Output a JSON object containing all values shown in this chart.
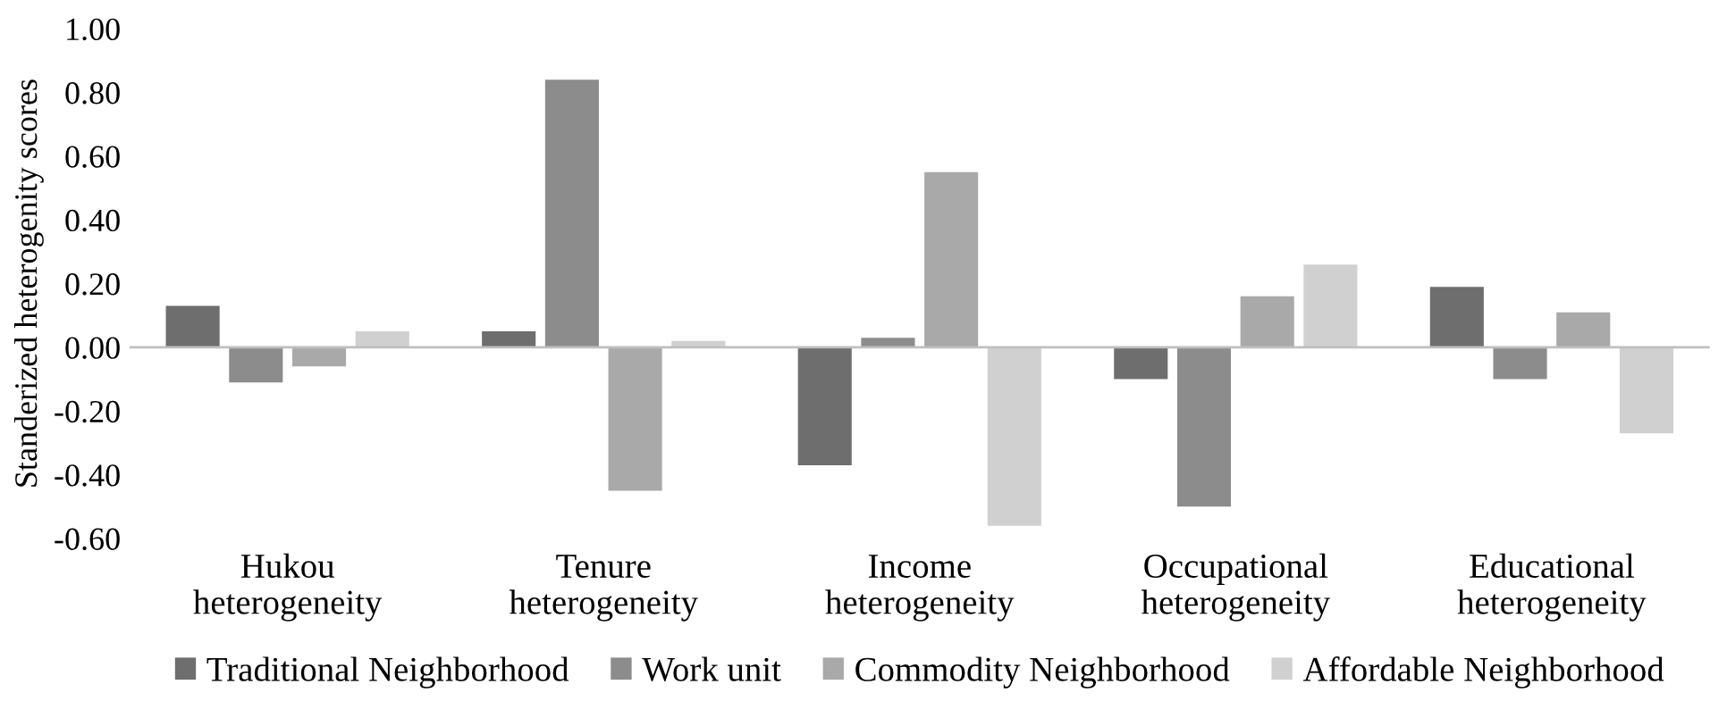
{
  "chart_data": {
    "type": "bar",
    "ylabel": "Standerized heterogenity scores",
    "categories": [
      "Hukou\nheterogeneity",
      "Tenure\nheterogeneity",
      "Income\nheterogeneity",
      "Occupational\nheterogeneity",
      "Educational\nheterogeneity"
    ],
    "series": [
      {
        "name": "Traditional Neighborhood",
        "color": "#6e6e6e",
        "values": [
          0.13,
          0.05,
          -0.37,
          -0.1,
          0.19
        ]
      },
      {
        "name": "Work unit",
        "color": "#8c8c8c",
        "values": [
          -0.11,
          0.84,
          0.03,
          -0.5,
          -0.1
        ]
      },
      {
        "name": "Commodity Neighborhood",
        "color": "#a9a9a9",
        "values": [
          -0.06,
          -0.45,
          0.55,
          0.16,
          0.11
        ]
      },
      {
        "name": "Affordable Neighborhood",
        "color": "#d0d0d0",
        "values": [
          0.05,
          0.02,
          -0.56,
          0.26,
          -0.27
        ]
      }
    ],
    "ylim": [
      -0.6,
      1.0
    ],
    "yticks": [
      {
        "value": -0.6,
        "label": "-0.60"
      },
      {
        "value": -0.4,
        "label": "-0.40"
      },
      {
        "value": -0.2,
        "label": "-0.20"
      },
      {
        "value": 0,
        "label": "0.00"
      },
      {
        "value": 0.2,
        "label": "0.20"
      },
      {
        "value": 0.4,
        "label": "0.40"
      },
      {
        "value": 0.6,
        "label": "0.60"
      },
      {
        "value": 0.8,
        "label": "0.80"
      },
      {
        "value": 1.0,
        "label": "1.00"
      }
    ],
    "legend": "bottom"
  }
}
